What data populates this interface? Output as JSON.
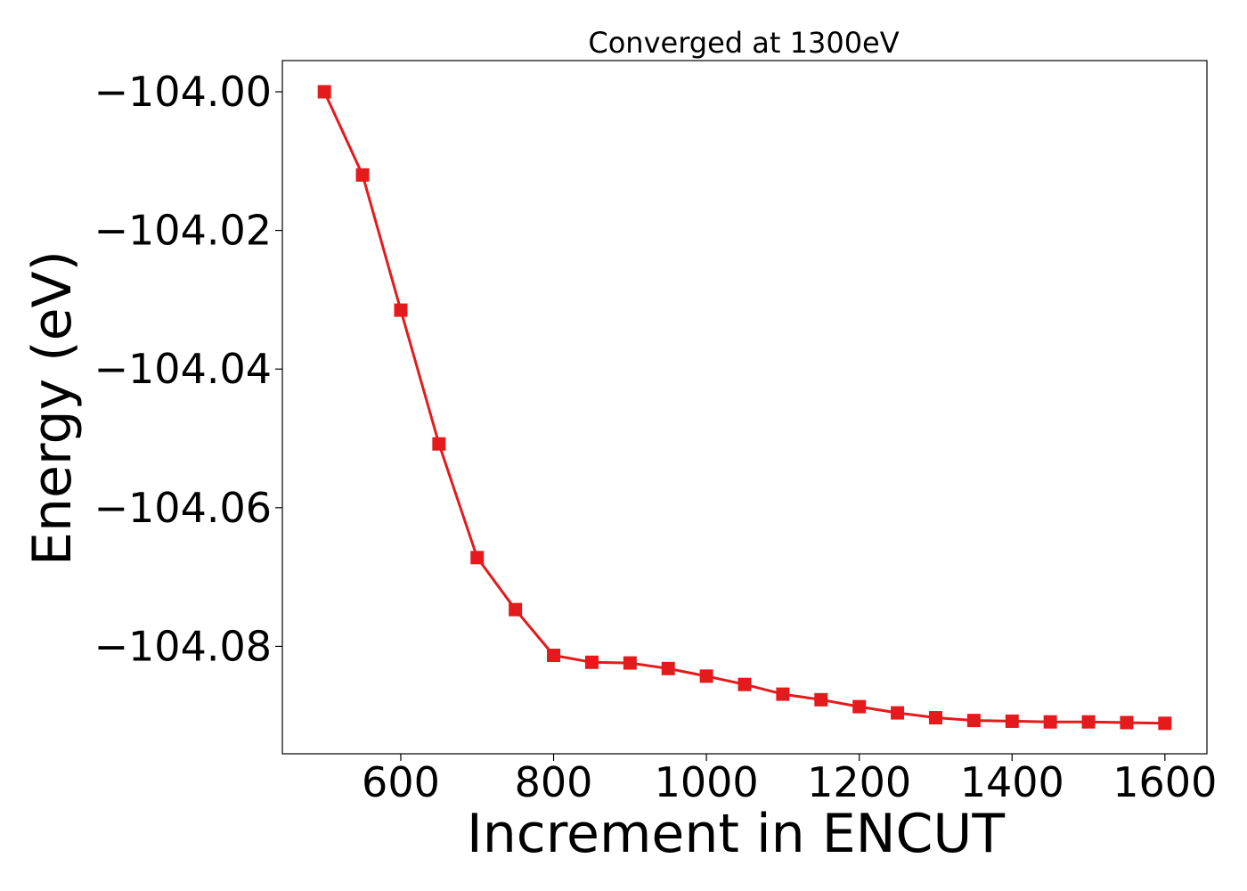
{
  "chart_data": {
    "type": "line",
    "title": "Converged at 1300eV",
    "xlabel": "Increment in ENCUT",
    "ylabel": "Energy (eV)",
    "xlim": [
      445,
      1655
    ],
    "ylim": [
      -104.0955,
      -103.9955
    ],
    "x_ticks": [
      600,
      800,
      1000,
      1200,
      1400,
      1600
    ],
    "x_tick_labels": [
      "600",
      "800",
      "1000",
      "1200",
      "1400",
      "1600"
    ],
    "y_ticks": [
      -104.0,
      -104.02,
      -104.04,
      -104.06,
      -104.08
    ],
    "y_tick_labels": [
      "−104.00",
      "−104.02",
      "−104.04",
      "−104.06",
      "−104.08"
    ],
    "grid": false,
    "legend": "none",
    "series": [
      {
        "color": "#e41a1c",
        "marker": "square",
        "x": [
          500,
          550,
          600,
          650,
          700,
          750,
          800,
          850,
          900,
          950,
          1000,
          1050,
          1100,
          1150,
          1200,
          1250,
          1300,
          1350,
          1400,
          1450,
          1500,
          1550,
          1600
        ],
        "y": [
          -104.0,
          -104.012,
          -104.0315,
          -104.0508,
          -104.0672,
          -104.0747,
          -104.0813,
          -104.0823,
          -104.0824,
          -104.0832,
          -104.0843,
          -104.0855,
          -104.0869,
          -104.0877,
          -104.0887,
          -104.0896,
          -104.0903,
          -104.0907,
          -104.0908,
          -104.0909,
          -104.0909,
          -104.091,
          -104.0911
        ]
      }
    ]
  }
}
